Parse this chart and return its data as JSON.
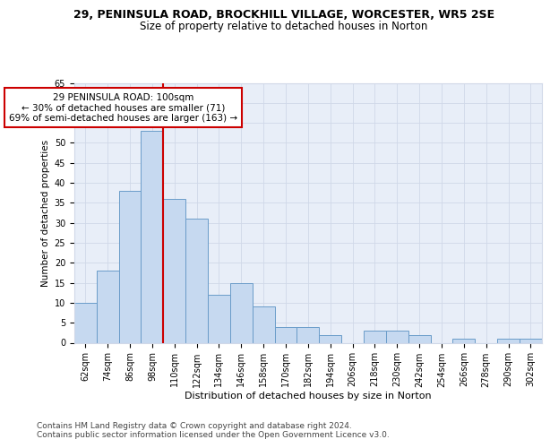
{
  "title1": "29, PENINSULA ROAD, BROCKHILL VILLAGE, WORCESTER, WR5 2SE",
  "title2": "Size of property relative to detached houses in Norton",
  "xlabel": "Distribution of detached houses by size in Norton",
  "ylabel": "Number of detached properties",
  "categories": [
    "62sqm",
    "74sqm",
    "86sqm",
    "98sqm",
    "110sqm",
    "122sqm",
    "134sqm",
    "146sqm",
    "158sqm",
    "170sqm",
    "182sqm",
    "194sqm",
    "206sqm",
    "218sqm",
    "230sqm",
    "242sqm",
    "254sqm",
    "266sqm",
    "278sqm",
    "290sqm",
    "302sqm"
  ],
  "values": [
    10,
    18,
    38,
    53,
    36,
    31,
    12,
    15,
    9,
    4,
    4,
    2,
    0,
    3,
    3,
    2,
    0,
    1,
    0,
    1,
    1
  ],
  "bar_color": "#c6d9f0",
  "bar_edge_color": "#6a9cc9",
  "vline_x": 3.5,
  "vline_color": "#cc0000",
  "annotation_text": "29 PENINSULA ROAD: 100sqm\n← 30% of detached houses are smaller (71)\n69% of semi-detached houses are larger (163) →",
  "annotation_box_color": "#ffffff",
  "annotation_box_edge": "#cc0000",
  "ylim": [
    0,
    65
  ],
  "yticks": [
    0,
    5,
    10,
    15,
    20,
    25,
    30,
    35,
    40,
    45,
    50,
    55,
    60,
    65
  ],
  "grid_color": "#d0d8e8",
  "bg_color": "#e8eef8",
  "footer": "Contains HM Land Registry data © Crown copyright and database right 2024.\nContains public sector information licensed under the Open Government Licence v3.0.",
  "title1_fontsize": 9,
  "title2_fontsize": 8.5,
  "xlabel_fontsize": 8,
  "ylabel_fontsize": 7.5,
  "tick_fontsize": 7,
  "annotation_fontsize": 7.5,
  "footer_fontsize": 6.5
}
